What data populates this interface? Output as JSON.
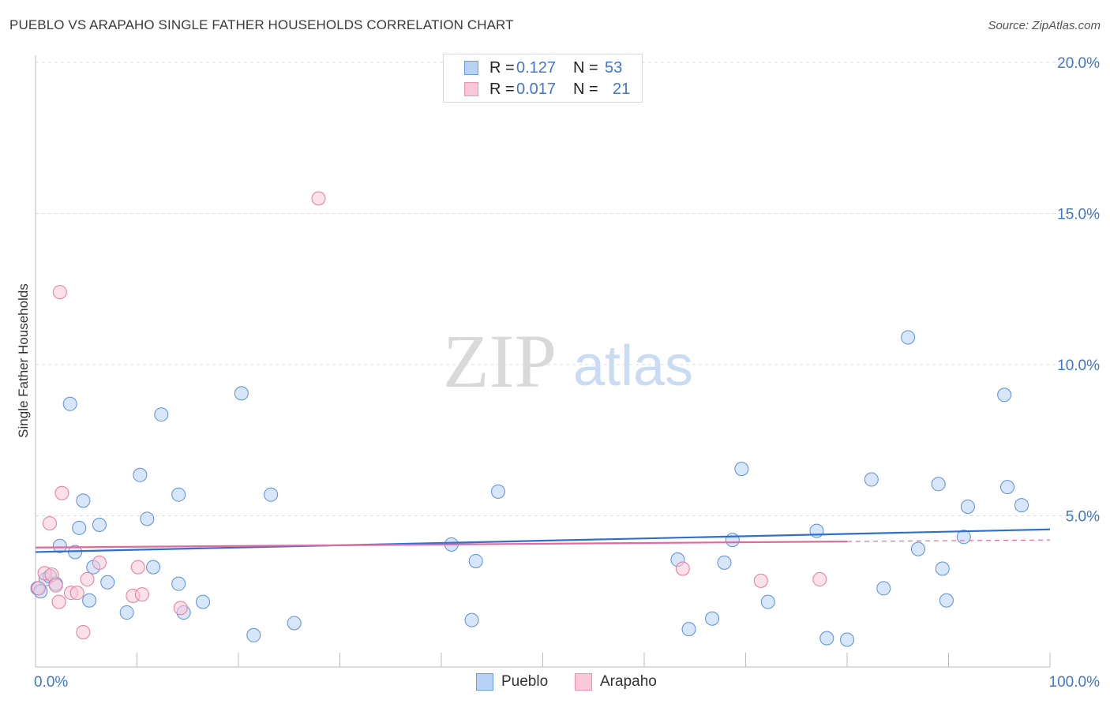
{
  "header": {
    "title": "PUEBLO VS ARAPAHO SINGLE FATHER HOUSEHOLDS CORRELATION CHART",
    "source": "Source: ZipAtlas.com"
  },
  "watermark": {
    "zip": "ZIP",
    "atlas": "atlas"
  },
  "legend_top": {
    "rows": [
      {
        "r_label": "R =",
        "r_value": "0.127",
        "n_label": "N =",
        "n_value": "53"
      },
      {
        "r_label": "R =",
        "r_value": "0.017",
        "n_label": "N =",
        "n_value": "21"
      }
    ]
  },
  "legend_bottom": {
    "items": [
      "Pueblo",
      "Arapaho"
    ]
  },
  "chart_data": {
    "type": "scatter",
    "title": "PUEBLO VS ARAPAHO SINGLE FATHER HOUSEHOLDS CORRELATION CHART",
    "xlabel": "",
    "ylabel": "Single Father Households",
    "xlim": [
      0,
      100
    ],
    "ylim": [
      0,
      21
    ],
    "x_tick_labels": [
      "0.0%",
      "100.0%"
    ],
    "y_ticks": [
      5,
      10,
      15,
      20
    ],
    "y_tick_labels": [
      "5.0%",
      "10.0%",
      "15.0%",
      "20.0%"
    ],
    "grid": true,
    "colors": {
      "pueblo": "#5b8fd8",
      "pueblo_fill": "#b8d2f5",
      "arapaho": "#e87aa0",
      "arapaho_fill": "#fac8d6",
      "axis_text": "#3f77cc"
    },
    "series": [
      {
        "name": "Pueblo",
        "r": 0.127,
        "n": 53,
        "trend": {
          "x": [
            0,
            100
          ],
          "y": [
            3.8,
            4.55
          ]
        },
        "points": [
          {
            "x": 0.2,
            "y": 2.6
          },
          {
            "x": 1.0,
            "y": 2.9
          },
          {
            "x": 1.4,
            "y": 3.0
          },
          {
            "x": 2.0,
            "y": 2.75
          },
          {
            "x": 2.4,
            "y": 4.0
          },
          {
            "x": 3.4,
            "y": 8.7
          },
          {
            "x": 3.9,
            "y": 3.8
          },
          {
            "x": 4.3,
            "y": 4.6
          },
          {
            "x": 4.7,
            "y": 5.5
          },
          {
            "x": 5.3,
            "y": 2.2
          },
          {
            "x": 5.7,
            "y": 3.3
          },
          {
            "x": 6.3,
            "y": 4.7
          },
          {
            "x": 7.1,
            "y": 2.8
          },
          {
            "x": 9.0,
            "y": 1.8
          },
          {
            "x": 10.3,
            "y": 6.35
          },
          {
            "x": 11.0,
            "y": 4.9
          },
          {
            "x": 11.6,
            "y": 3.3
          },
          {
            "x": 12.4,
            "y": 8.35
          },
          {
            "x": 14.1,
            "y": 5.7
          },
          {
            "x": 14.1,
            "y": 2.75
          },
          {
            "x": 14.6,
            "y": 1.8
          },
          {
            "x": 16.5,
            "y": 2.15
          },
          {
            "x": 20.3,
            "y": 9.05
          },
          {
            "x": 21.5,
            "y": 1.05
          },
          {
            "x": 23.2,
            "y": 5.7
          },
          {
            "x": 25.5,
            "y": 1.45
          },
          {
            "x": 41.0,
            "y": 4.05
          },
          {
            "x": 43.0,
            "y": 1.55
          },
          {
            "x": 43.4,
            "y": 3.5
          },
          {
            "x": 45.6,
            "y": 5.8
          },
          {
            "x": 63.3,
            "y": 3.55
          },
          {
            "x": 64.4,
            "y": 1.25
          },
          {
            "x": 66.7,
            "y": 1.6
          },
          {
            "x": 67.9,
            "y": 3.45
          },
          {
            "x": 68.7,
            "y": 4.2
          },
          {
            "x": 69.6,
            "y": 6.55
          },
          {
            "x": 72.2,
            "y": 2.15
          },
          {
            "x": 77.0,
            "y": 4.5
          },
          {
            "x": 78.0,
            "y": 0.95
          },
          {
            "x": 80.0,
            "y": 0.9
          },
          {
            "x": 82.4,
            "y": 6.2
          },
          {
            "x": 83.6,
            "y": 2.6
          },
          {
            "x": 86.0,
            "y": 10.9
          },
          {
            "x": 87.0,
            "y": 3.9
          },
          {
            "x": 89.0,
            "y": 6.05
          },
          {
            "x": 89.4,
            "y": 3.25
          },
          {
            "x": 89.8,
            "y": 2.2
          },
          {
            "x": 91.5,
            "y": 4.3
          },
          {
            "x": 91.9,
            "y": 5.3
          },
          {
            "x": 95.5,
            "y": 9.0
          },
          {
            "x": 95.8,
            "y": 5.95
          },
          {
            "x": 97.2,
            "y": 5.35
          },
          {
            "x": 0.5,
            "y": 2.5
          }
        ]
      },
      {
        "name": "Arapaho",
        "r": 0.017,
        "n": 21,
        "trend": {
          "x": [
            0,
            100
          ],
          "y": [
            3.95,
            4.2
          ]
        },
        "points": [
          {
            "x": 0.3,
            "y": 2.6
          },
          {
            "x": 0.9,
            "y": 3.1
          },
          {
            "x": 1.6,
            "y": 3.05
          },
          {
            "x": 2.0,
            "y": 2.7
          },
          {
            "x": 2.3,
            "y": 2.15
          },
          {
            "x": 1.4,
            "y": 4.75
          },
          {
            "x": 2.4,
            "y": 12.4
          },
          {
            "x": 2.6,
            "y": 5.75
          },
          {
            "x": 3.5,
            "y": 2.45
          },
          {
            "x": 4.1,
            "y": 2.45
          },
          {
            "x": 4.7,
            "y": 1.15
          },
          {
            "x": 5.1,
            "y": 2.9
          },
          {
            "x": 6.3,
            "y": 3.45
          },
          {
            "x": 9.6,
            "y": 2.35
          },
          {
            "x": 10.1,
            "y": 3.3
          },
          {
            "x": 10.5,
            "y": 2.4
          },
          {
            "x": 14.3,
            "y": 1.95
          },
          {
            "x": 27.9,
            "y": 15.5
          },
          {
            "x": 63.8,
            "y": 3.25
          },
          {
            "x": 71.5,
            "y": 2.85
          },
          {
            "x": 77.3,
            "y": 2.9
          }
        ]
      }
    ]
  }
}
